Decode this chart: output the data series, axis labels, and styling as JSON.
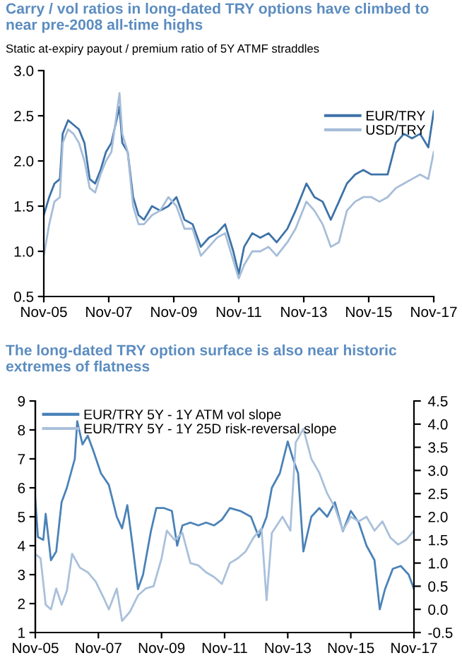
{
  "chart_data": [
    {
      "type": "line",
      "title": "Carry / vol ratios in long-dated TRY options have climbed to near pre-2008 all-time highs",
      "subtitle": "Static at-expiry payout / premium ratio of 5Y ATMF straddles",
      "x": [
        "2005-11",
        "2006-01",
        "2006-03",
        "2006-05",
        "2006-06",
        "2006-08",
        "2006-10",
        "2006-12",
        "2007-02",
        "2007-04",
        "2007-06",
        "2007-08",
        "2007-10",
        "2007-12",
        "2008-03",
        "2008-04",
        "2008-06",
        "2008-08",
        "2008-10",
        "2008-12",
        "2009-03",
        "2009-06",
        "2009-09",
        "2009-12",
        "2010-03",
        "2010-06",
        "2010-09",
        "2010-12",
        "2011-03",
        "2011-06",
        "2011-09",
        "2011-11",
        "2012-01",
        "2012-04",
        "2012-07",
        "2012-10",
        "2013-01",
        "2013-05",
        "2013-08",
        "2013-12",
        "2014-03",
        "2014-06",
        "2014-09",
        "2014-12",
        "2015-03",
        "2015-06",
        "2015-09",
        "2015-12",
        "2016-03",
        "2016-06",
        "2016-09",
        "2016-12",
        "2017-03",
        "2017-06",
        "2017-09",
        "2017-11"
      ],
      "series": [
        {
          "name": "EUR/TRY",
          "color": "#3d72a8",
          "values": [
            1.4,
            1.6,
            1.75,
            1.8,
            2.3,
            2.45,
            2.4,
            2.35,
            2.2,
            1.8,
            1.75,
            1.9,
            2.1,
            2.2,
            2.6,
            2.2,
            2.1,
            1.6,
            1.4,
            1.35,
            1.5,
            1.45,
            1.5,
            1.6,
            1.35,
            1.3,
            1.05,
            1.15,
            1.2,
            1.3,
            1.0,
            0.75,
            1.05,
            1.2,
            1.15,
            1.2,
            1.1,
            1.25,
            1.45,
            1.75,
            1.6,
            1.55,
            1.35,
            1.55,
            1.75,
            1.85,
            1.9,
            1.85,
            1.85,
            1.85,
            2.2,
            2.3,
            2.25,
            2.3,
            2.15,
            2.55
          ]
        },
        {
          "name": "USD/TRY",
          "color": "#a6bdd8",
          "values": [
            0.95,
            1.3,
            1.55,
            1.6,
            2.2,
            2.35,
            2.3,
            2.2,
            2.0,
            1.7,
            1.65,
            1.85,
            2.0,
            2.1,
            2.75,
            2.3,
            2.1,
            1.5,
            1.3,
            1.3,
            1.4,
            1.45,
            1.6,
            1.5,
            1.25,
            1.25,
            0.95,
            1.05,
            1.15,
            1.2,
            0.9,
            0.7,
            0.85,
            1.0,
            1.0,
            1.05,
            0.95,
            1.1,
            1.25,
            1.55,
            1.45,
            1.3,
            1.05,
            1.1,
            1.45,
            1.55,
            1.6,
            1.6,
            1.55,
            1.6,
            1.7,
            1.75,
            1.8,
            1.85,
            1.8,
            2.1
          ]
        }
      ],
      "xlim": [
        "2005-11",
        "2017-11"
      ],
      "xticks": [
        {
          "value": "2005-11",
          "label": "Nov-05"
        },
        {
          "value": "2007-11",
          "label": "Nov-07"
        },
        {
          "value": "2009-11",
          "label": "Nov-09"
        },
        {
          "value": "2011-11",
          "label": "Nov-11"
        },
        {
          "value": "2013-11",
          "label": "Nov-13"
        },
        {
          "value": "2015-11",
          "label": "Nov-15"
        },
        {
          "value": "2017-11",
          "label": "Nov-17"
        }
      ],
      "ylim": [
        0.5,
        3.0
      ],
      "yticks": [
        {
          "value": 0.5,
          "label": "0.5"
        },
        {
          "value": 1.0,
          "label": "1.0"
        },
        {
          "value": 1.5,
          "label": "1.5"
        },
        {
          "value": 2.0,
          "label": "2.0"
        },
        {
          "value": 2.5,
          "label": "2.5"
        },
        {
          "value": 3.0,
          "label": "3.0"
        }
      ],
      "grid": false,
      "legend": "top right"
    },
    {
      "type": "line",
      "title": "The long-dated TRY option surface is also near historic  extremes of flatness",
      "series": [
        {
          "name": "EUR/TRY 5Y - 1Y ATM vol slope",
          "color": "#4a82b8",
          "x": [
            "2005-11",
            "2005-12",
            "2006-02",
            "2006-03",
            "2006-05",
            "2006-07",
            "2006-09",
            "2006-11",
            "2007-02",
            "2007-03",
            "2007-05",
            "2007-07",
            "2007-09",
            "2007-12",
            "2008-03",
            "2008-06",
            "2008-08",
            "2008-10",
            "2008-12",
            "2009-02",
            "2009-04",
            "2009-07",
            "2009-09",
            "2009-12",
            "2010-03",
            "2010-05",
            "2010-07",
            "2010-10",
            "2011-01",
            "2011-04",
            "2011-07",
            "2011-10",
            "2012-01",
            "2012-05",
            "2012-09",
            "2012-12",
            "2013-03",
            "2013-05",
            "2013-08",
            "2013-11",
            "2014-01",
            "2014-03",
            "2014-05",
            "2014-08",
            "2014-11",
            "2015-02",
            "2015-05",
            "2015-08",
            "2015-11",
            "2016-02",
            "2016-05",
            "2016-08",
            "2016-10",
            "2016-12",
            "2017-03",
            "2017-06",
            "2017-09",
            "2017-11"
          ],
          "values": [
            5.6,
            4.3,
            4.2,
            5.1,
            3.5,
            3.8,
            5.5,
            6.0,
            7.0,
            8.3,
            7.5,
            7.8,
            7.3,
            6.5,
            6.1,
            5.0,
            4.6,
            5.4,
            4.0,
            2.5,
            3.0,
            4.5,
            5.3,
            5.3,
            5.2,
            4.0,
            4.7,
            4.8,
            4.7,
            4.8,
            4.7,
            4.9,
            5.3,
            5.2,
            5.0,
            4.3,
            5.0,
            6.0,
            6.5,
            7.6,
            7.0,
            6.5,
            3.8,
            5.0,
            5.3,
            5.0,
            5.5,
            4.5,
            5.2,
            4.8,
            4.0,
            3.5,
            1.8,
            2.5,
            3.2,
            3.3,
            3.0,
            2.5
          ]
        },
        {
          "name": "EUR/TRY 5Y - 1Y 25D risk-reversal slope",
          "color": "#a9c0da",
          "axis": "y2",
          "x": [
            "2005-11",
            "2006-01",
            "2006-03",
            "2006-05",
            "2006-07",
            "2006-09",
            "2006-11",
            "2007-01",
            "2007-04",
            "2007-07",
            "2007-10",
            "2008-01",
            "2008-03",
            "2008-06",
            "2008-08",
            "2008-11",
            "2009-02",
            "2009-05",
            "2009-08",
            "2009-11",
            "2010-01",
            "2010-04",
            "2010-07",
            "2010-10",
            "2011-01",
            "2011-04",
            "2011-07",
            "2011-10",
            "2012-01",
            "2012-04",
            "2012-07",
            "2012-10",
            "2013-01",
            "2013-03",
            "2013-05",
            "2013-09",
            "2013-12",
            "2014-02",
            "2014-05",
            "2014-08",
            "2014-11",
            "2015-02",
            "2015-05",
            "2015-08",
            "2015-11",
            "2016-02",
            "2016-05",
            "2016-08",
            "2016-11",
            "2017-02",
            "2017-05",
            "2017-08",
            "2017-11"
          ],
          "values": [
            1.2,
            1.1,
            0.1,
            0.0,
            0.45,
            0.1,
            0.4,
            1.2,
            0.9,
            0.8,
            0.6,
            0.25,
            0.0,
            0.45,
            -0.25,
            -0.05,
            0.3,
            0.45,
            0.5,
            1.1,
            1.7,
            1.5,
            1.65,
            1.0,
            0.95,
            0.8,
            0.7,
            0.55,
            1.0,
            1.1,
            1.25,
            1.55,
            1.75,
            0.2,
            1.65,
            2.0,
            1.7,
            3.6,
            3.9,
            3.25,
            2.95,
            2.5,
            2.2,
            1.7,
            2.0,
            1.9,
            2.0,
            1.7,
            1.9,
            1.55,
            1.4,
            1.5,
            1.7
          ]
        }
      ],
      "xlim": [
        "2005-11",
        "2017-11"
      ],
      "xticks": [
        {
          "value": "2005-11",
          "label": "Nov-05"
        },
        {
          "value": "2007-11",
          "label": "Nov-07"
        },
        {
          "value": "2009-11",
          "label": "Nov-09"
        },
        {
          "value": "2011-11",
          "label": "Nov-11"
        },
        {
          "value": "2013-11",
          "label": "Nov-13"
        },
        {
          "value": "2015-11",
          "label": "Nov-15"
        },
        {
          "value": "2017-11",
          "label": "Nov-17"
        }
      ],
      "ylim": [
        1,
        9
      ],
      "yticks": [
        1,
        2,
        3,
        4,
        5,
        6,
        7,
        8,
        9
      ],
      "y2lim": [
        -0.5,
        4.5
      ],
      "y2ticks": [
        {
          "value": -0.5,
          "label": "-0.5"
        },
        {
          "value": 0.0,
          "label": "0.0"
        },
        {
          "value": 0.5,
          "label": "0.5"
        },
        {
          "value": 1.0,
          "label": "1.0"
        },
        {
          "value": 1.5,
          "label": "1.5"
        },
        {
          "value": 2.0,
          "label": "2.0"
        },
        {
          "value": 2.5,
          "label": "2.5"
        },
        {
          "value": 3.0,
          "label": "3.0"
        },
        {
          "value": 3.5,
          "label": "3.5"
        },
        {
          "value": 4.0,
          "label": "4.0"
        },
        {
          "value": 4.5,
          "label": "4.5"
        }
      ],
      "grid": false,
      "legend": "top left"
    }
  ]
}
